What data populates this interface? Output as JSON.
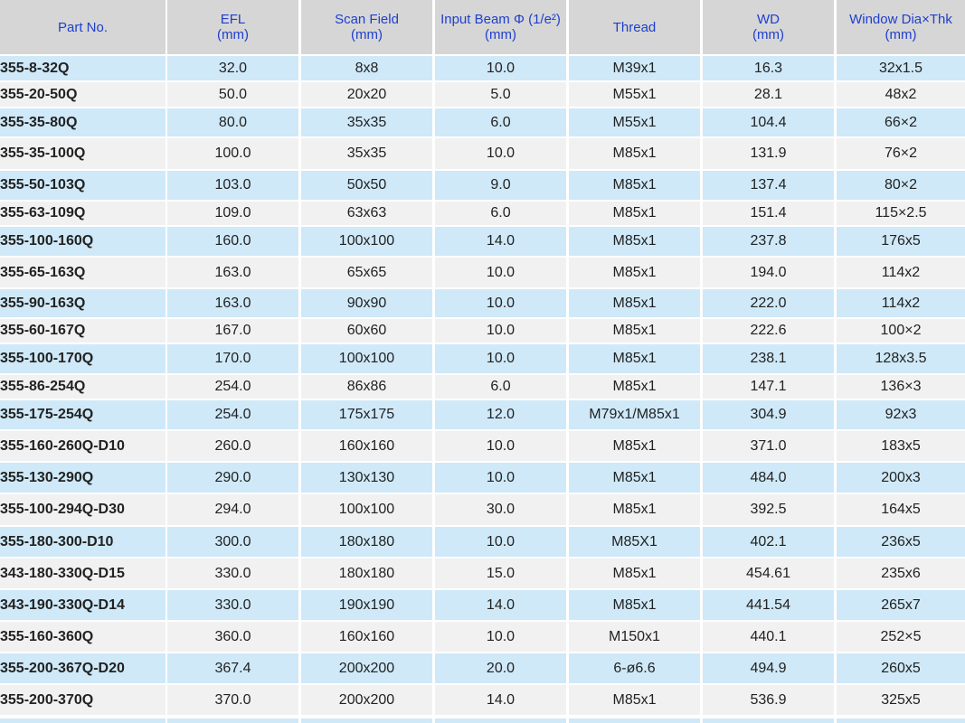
{
  "table": {
    "headers": [
      [
        "Part No."
      ],
      [
        "EFL",
        "(mm)"
      ],
      [
        "Scan Field",
        "(mm)"
      ],
      [
        "Input Beam Φ (1/e²)",
        "(mm)"
      ],
      [
        "Thread"
      ],
      [
        "WD",
        "(mm)"
      ],
      [
        "Window Dia×Thk",
        "(mm)"
      ]
    ],
    "rows": [
      [
        "355-8-32Q",
        "32.0",
        "8x8",
        "10.0",
        "M39x1",
        "16.3",
        "32x1.5"
      ],
      [
        "355-20-50Q",
        "50.0",
        "20x20",
        "5.0",
        "M55x1",
        "28.1",
        "48x2"
      ],
      [
        "355-35-80Q",
        "80.0",
        "35x35",
        "6.0",
        "M55x1",
        "104.4",
        "66×2"
      ],
      [
        "355-35-100Q",
        "100.0",
        "35x35",
        "10.0",
        "M85x1",
        "131.9",
        "76×2"
      ],
      [
        "355-50-103Q",
        "103.0",
        "50x50",
        "9.0",
        "M85x1",
        "137.4",
        "80×2"
      ],
      [
        "355-63-109Q",
        "109.0",
        "63x63",
        "6.0",
        "M85x1",
        "151.4",
        "115×2.5"
      ],
      [
        "355-100-160Q",
        "160.0",
        "100x100",
        "14.0",
        "M85x1",
        "237.8",
        "176x5"
      ],
      [
        "355-65-163Q",
        "163.0",
        "65x65",
        "10.0",
        "M85x1",
        "194.0",
        "114x2"
      ],
      [
        "355-90-163Q",
        "163.0",
        "90x90",
        "10.0",
        "M85x1",
        "222.0",
        "114x2"
      ],
      [
        "355-60-167Q",
        "167.0",
        "60x60",
        "10.0",
        "M85x1",
        "222.6",
        "100×2"
      ],
      [
        "355-100-170Q",
        "170.0",
        "100x100",
        "10.0",
        "M85x1",
        "238.1",
        "128x3.5"
      ],
      [
        "355-86-254Q",
        "254.0",
        "86x86",
        "6.0",
        "M85x1",
        "147.1",
        "136×3"
      ],
      [
        "355-175-254Q",
        "254.0",
        "175x175",
        "12.0",
        "M79x1/M85x1",
        "304.9",
        "92x3"
      ],
      [
        "355-160-260Q-D10",
        "260.0",
        "160x160",
        "10.0",
        "M85x1",
        "371.0",
        "183x5"
      ],
      [
        "355-130-290Q",
        "290.0",
        "130x130",
        "10.0",
        "M85x1",
        "484.0",
        "200x3"
      ],
      [
        "355-100-294Q-D30",
        "294.0",
        "100x100",
        "30.0",
        "M85x1",
        "392.5",
        "164x5"
      ],
      [
        "355-180-300-D10",
        "300.0",
        "180x180",
        "10.0",
        "M85X1",
        "402.1",
        "236x5"
      ],
      [
        "343-180-330Q-D15",
        "330.0",
        "180x180",
        "15.0",
        "M85x1",
        "454.61",
        "235x6"
      ],
      [
        "343-190-330Q-D14",
        "330.0",
        "190x190",
        "14.0",
        "M85x1",
        "441.54",
        "265x7"
      ],
      [
        "355-160-360Q",
        "360.0",
        "160x160",
        "10.0",
        "M150x1",
        "440.1",
        "252×5"
      ],
      [
        "355-200-367Q-D20",
        "367.4",
        "200x200",
        "20.0",
        "6-ø6.6",
        "494.9",
        "260x5"
      ],
      [
        "355-200-370Q",
        "370.0",
        "200x200",
        "14.0",
        "M85x1",
        "536.9",
        "325x5"
      ]
    ]
  }
}
